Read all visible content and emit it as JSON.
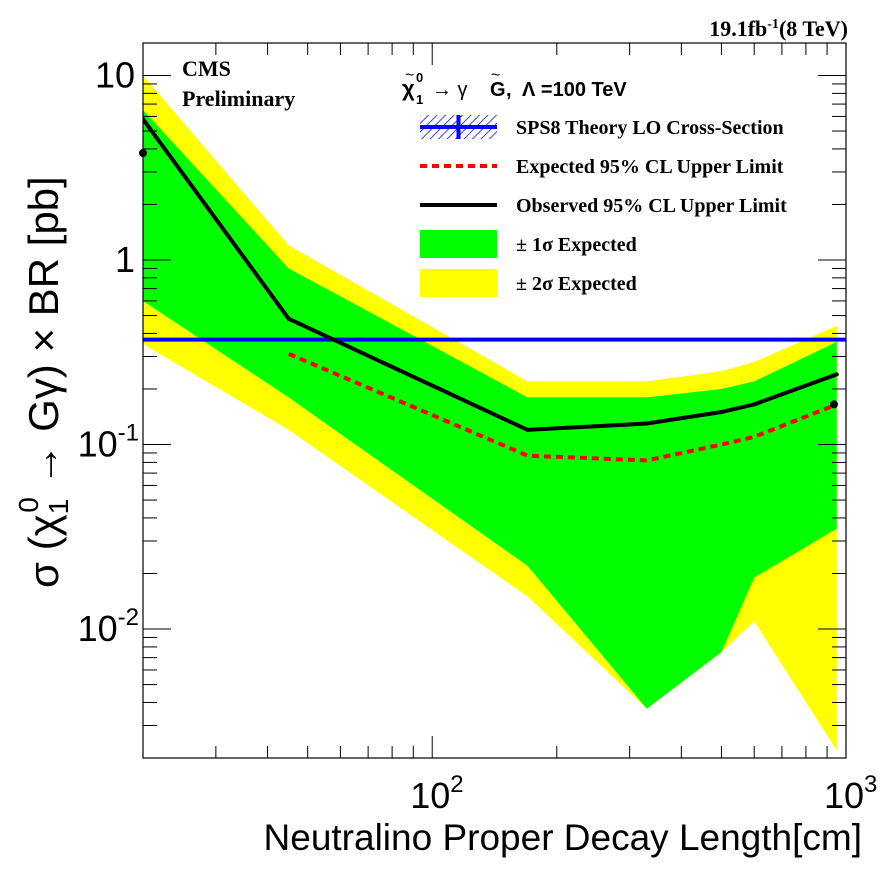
{
  "chart_data": {
    "type": "line",
    "lumi_label": "19.1fb",
    "lumi_sup": "-1",
    "energy_label": "(8 TeV)",
    "experiment_label": "CMS",
    "status_label": "Preliminary",
    "process_label": "→ γ",
    "lambda_label": "Λ =100 TeV",
    "xlabel": "Neutralino Proper Decay Length[cm]",
    "ylabel_prefix": "σ (χ",
    "ylabel_middle": " → Gγ) × BR [pb]",
    "x_scale": "log",
    "y_scale": "log",
    "xlim": [
      20,
      1000
    ],
    "ylim": [
      0.002,
      15
    ],
    "x_ticks": [
      {
        "base": "10",
        "exp": "2",
        "value": 100
      },
      {
        "base": "10",
        "exp": "3",
        "value": 1000
      }
    ],
    "y_ticks": [
      {
        "base": "10",
        "exp": "-2",
        "value": 0.01
      },
      {
        "base": "10",
        "exp": "-1",
        "value": 0.1
      },
      {
        "base": "1",
        "exp": "",
        "value": 1
      },
      {
        "base": "10",
        "exp": "",
        "value": 10
      }
    ],
    "legend_position": "top-right",
    "legend": [
      {
        "label": "SPS8 Theory LO Cross-Section",
        "style": "theory"
      },
      {
        "label": "Expected 95% CL Upper Limit",
        "style": "expected"
      },
      {
        "label": "Observed  95% CL Upper Limit",
        "style": "observed"
      },
      {
        "label": "± 1σ Expected",
        "style": "band1"
      },
      {
        "label": "± 2σ Expected",
        "style": "band2"
      }
    ],
    "colors": {
      "theory": "#0000ff",
      "expected": "#ff0000",
      "observed": "#000000",
      "band1": "#00ff00",
      "band2": "#ffff00"
    },
    "x": [
      20,
      45,
      170,
      330,
      500,
      600,
      950
    ],
    "series": [
      {
        "name": "Observed  95% CL Upper Limit",
        "values": [
          5.8,
          0.48,
          0.12,
          0.13,
          0.15,
          0.165,
          0.24
        ]
      },
      {
        "name": "Expected 95% CL Upper Limit",
        "values": [
          null,
          0.31,
          0.087,
          0.082,
          0.1,
          0.11,
          0.165
        ]
      },
      {
        "name": "SPS8 Theory LO Cross-Section",
        "values": [
          0.37,
          0.37,
          0.37,
          0.37,
          0.37,
          0.37,
          0.37
        ]
      }
    ],
    "band_1sigma": {
      "x": [
        20,
        45,
        170,
        330,
        500,
        600,
        950
      ],
      "upper": [
        6.5,
        0.9,
        0.18,
        0.18,
        0.2,
        0.22,
        0.36
      ],
      "lower": [
        0.6,
        0.18,
        0.022,
        0.0037,
        0.0075,
        0.019,
        0.035
      ]
    },
    "band_2sigma": {
      "x": [
        20,
        45,
        170,
        330,
        500,
        600,
        950
      ],
      "upper": [
        10,
        1.2,
        0.22,
        0.22,
        0.25,
        0.28,
        0.44
      ],
      "lower": [
        0.35,
        0.12,
        0.015,
        0.0037,
        0.0075,
        0.011,
        0.0022
      ]
    }
  }
}
